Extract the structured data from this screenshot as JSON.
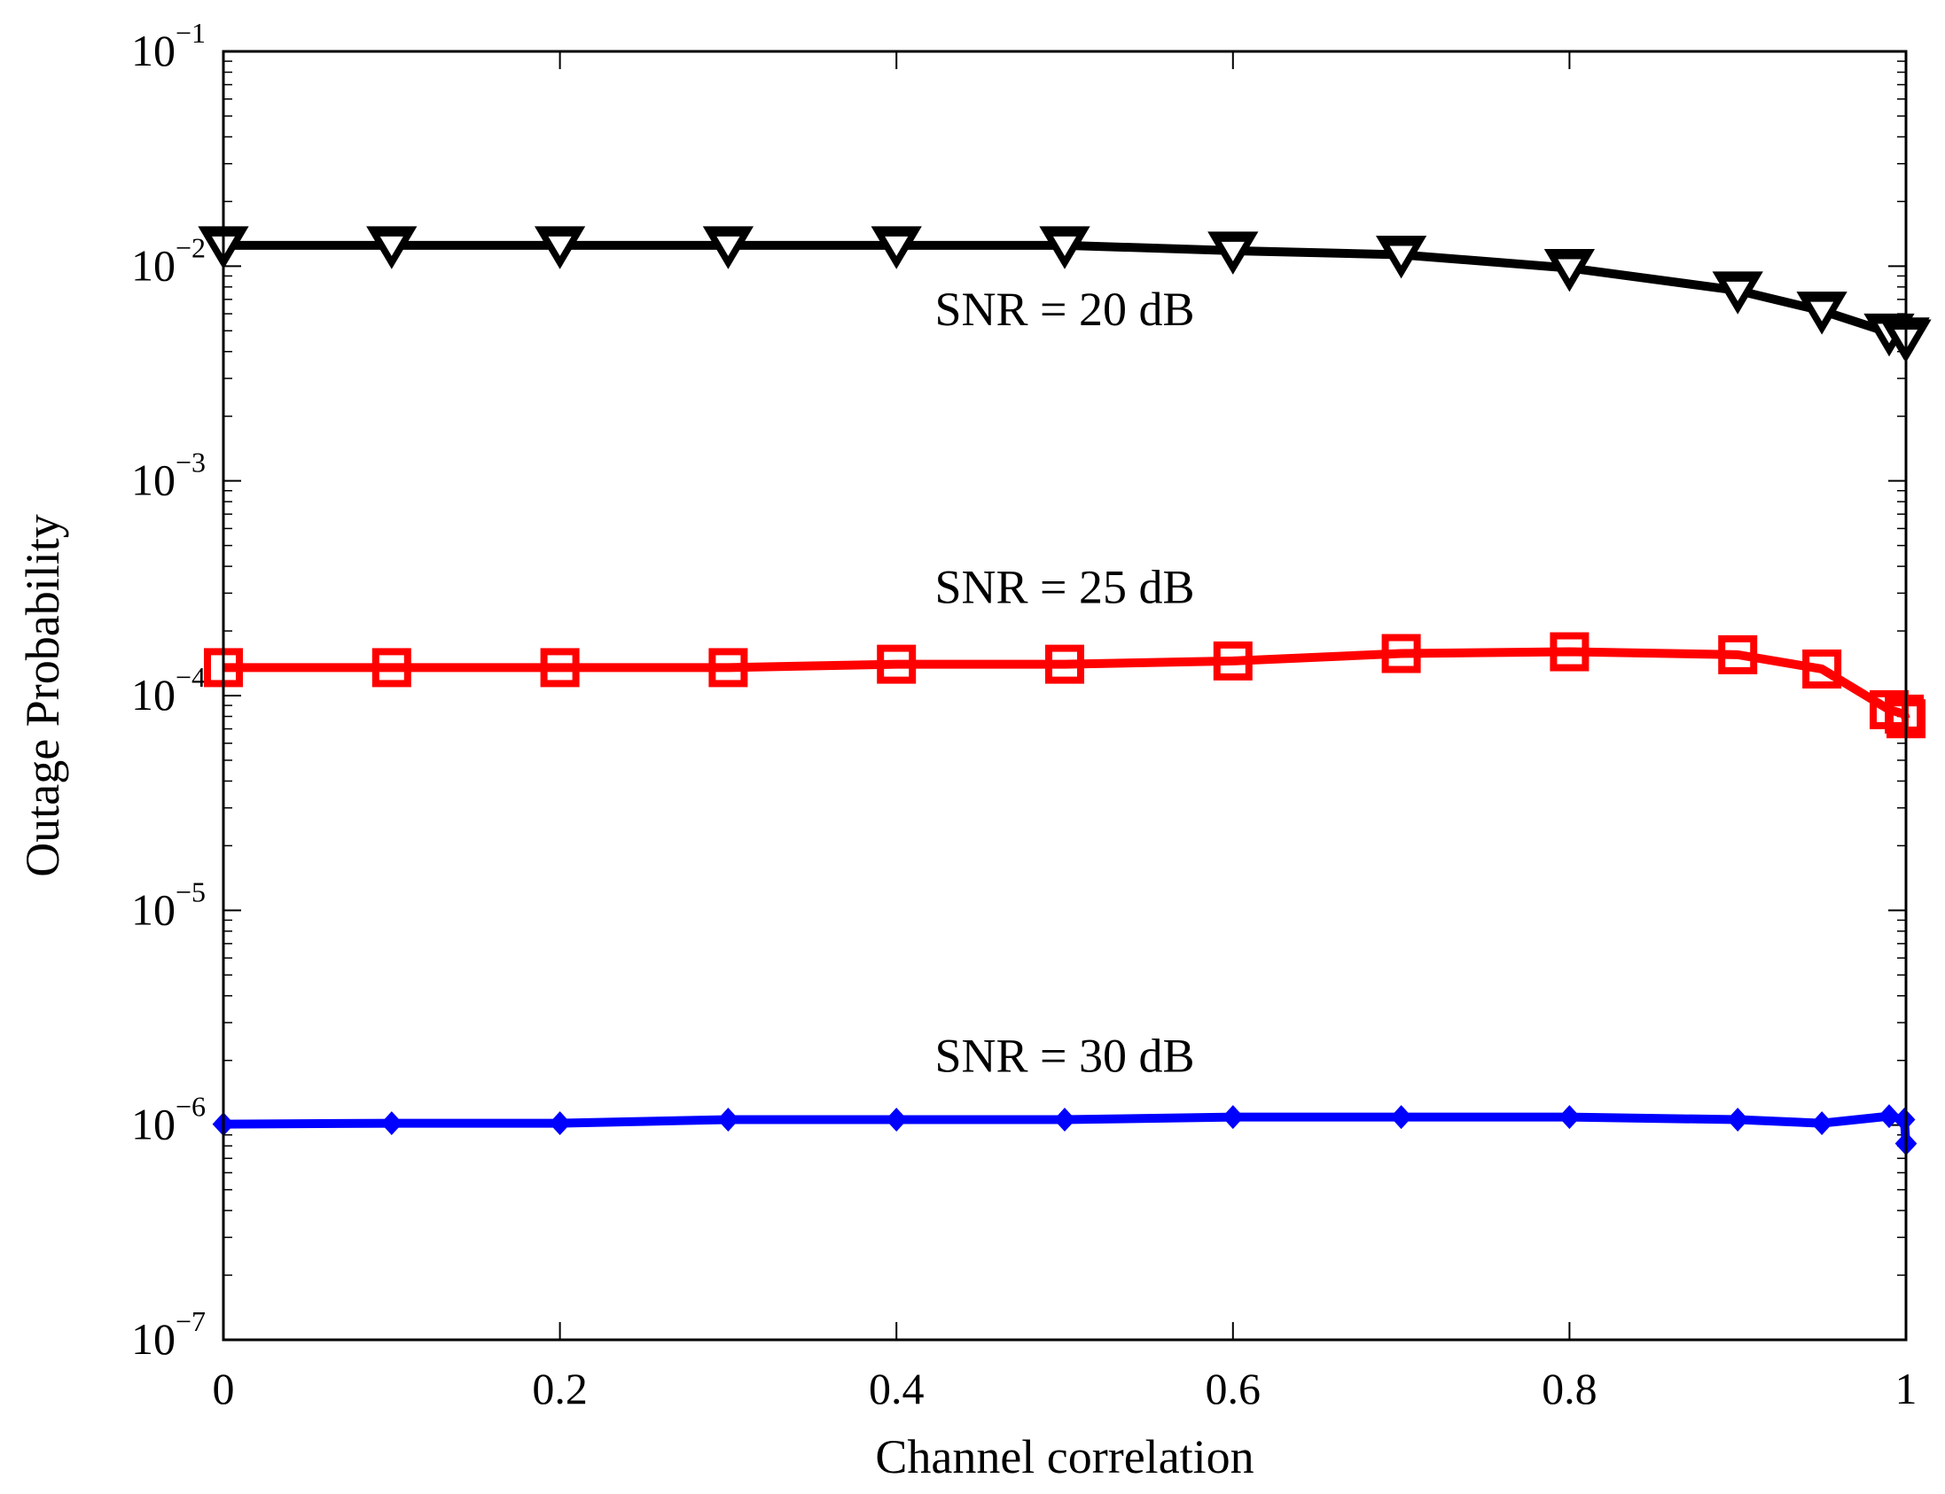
{
  "chart_data": {
    "type": "line",
    "title": "",
    "xlabel": "Channel correlation",
    "ylabel": "Outage Probability",
    "xscale": "linear",
    "yscale": "log",
    "xlim": [
      0,
      1
    ],
    "ylim": [
      1e-07,
      0.1
    ],
    "grid": false,
    "x_ticks": [
      {
        "value": 0,
        "label": "0"
      },
      {
        "value": 0.2,
        "label": "0.2"
      },
      {
        "value": 0.4,
        "label": "0.4"
      },
      {
        "value": 0.6,
        "label": "0.6"
      },
      {
        "value": 0.8,
        "label": "0.8"
      },
      {
        "value": 1,
        "label": "1"
      }
    ],
    "y_ticks": [
      {
        "value": 1e-07,
        "base": "10",
        "exp": "−7"
      },
      {
        "value": 1e-06,
        "base": "10",
        "exp": "−6"
      },
      {
        "value": 1e-05,
        "base": "10",
        "exp": "−5"
      },
      {
        "value": 0.0001,
        "base": "10",
        "exp": "−4"
      },
      {
        "value": 0.001,
        "base": "10",
        "exp": "−3"
      },
      {
        "value": 0.01,
        "base": "10",
        "exp": "−2"
      },
      {
        "value": 0.1,
        "base": "10",
        "exp": "−1"
      }
    ],
    "series": [
      {
        "name": "SNR = 20 dB",
        "color": "#000000",
        "marker": "triangle-down",
        "x": [
          0,
          0.1,
          0.2,
          0.3,
          0.4,
          0.5,
          0.6,
          0.7,
          0.8,
          0.9,
          0.95,
          0.99,
          0.999,
          1
        ],
        "y": [
          0.0125,
          0.0125,
          0.0125,
          0.0125,
          0.0125,
          0.0125,
          0.0118,
          0.0113,
          0.0098,
          0.0077,
          0.0062,
          0.0049,
          0.0047,
          0.0046
        ]
      },
      {
        "name": "SNR = 25 dB",
        "color": "#ff0000",
        "marker": "square",
        "x": [
          0,
          0.1,
          0.2,
          0.3,
          0.4,
          0.5,
          0.6,
          0.7,
          0.8,
          0.9,
          0.95,
          0.99,
          0.999,
          1
        ],
        "y": [
          0.000135,
          0.000135,
          0.000135,
          0.000135,
          0.00014,
          0.00014,
          0.000145,
          0.000157,
          0.00016,
          0.000155,
          0.000133,
          8.6e-05,
          8.2e-05,
          7.8e-05
        ]
      },
      {
        "name": "SNR = 30 dB",
        "color": "#0000ff",
        "marker": "diamond",
        "x": [
          0,
          0.1,
          0.2,
          0.3,
          0.4,
          0.5,
          0.6,
          0.7,
          0.8,
          0.9,
          0.95,
          0.99,
          0.999,
          1
        ],
        "y": [
          1.01e-06,
          1.02e-06,
          1.02e-06,
          1.06e-06,
          1.06e-06,
          1.06e-06,
          1.09e-06,
          1.09e-06,
          1.09e-06,
          1.06e-06,
          1.02e-06,
          1.1e-06,
          1.06e-06,
          8.2e-07
        ]
      }
    ],
    "annotations": [
      {
        "text": "SNR = 20 dB",
        "x": 0.5,
        "y": 0.0053
      },
      {
        "text": "SNR = 25 dB",
        "x": 0.5,
        "y": 0.00027
      },
      {
        "text": "SNR = 30 dB",
        "x": 0.5,
        "y": 1.77e-06
      }
    ]
  }
}
